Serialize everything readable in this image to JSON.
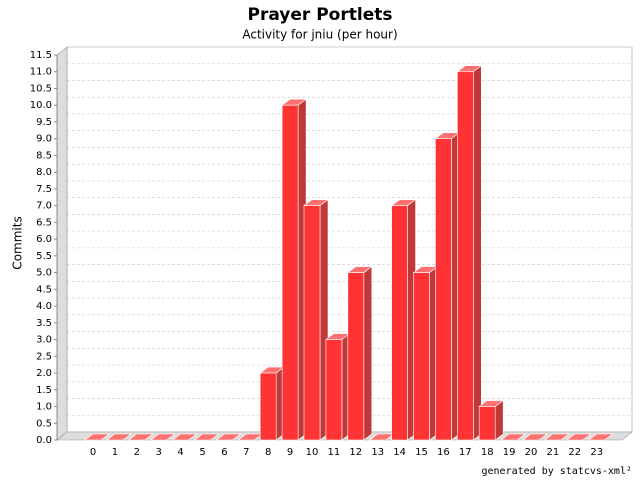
{
  "chart_data": {
    "type": "bar3d",
    "title": "Prayer Portlets",
    "subtitle": "Activity for jniu (per hour)",
    "y_label": "Commits",
    "footer": "generated by statcvs-xml²",
    "categories": [
      "0",
      "1",
      "2",
      "3",
      "4",
      "5",
      "6",
      "7",
      "8",
      "9",
      "10",
      "11",
      "12",
      "13",
      "14",
      "15",
      "16",
      "17",
      "18",
      "19",
      "20",
      "21",
      "22",
      "23"
    ],
    "values": [
      0,
      0,
      0,
      0,
      0,
      0,
      0,
      0,
      2,
      10,
      7,
      3,
      5,
      0,
      7,
      5,
      9,
      11,
      1,
      0,
      0,
      0,
      0,
      0
    ],
    "color": "#ff3333",
    "ylim": [
      0,
      11.5
    ],
    "yticks": [
      {
        "value": 0,
        "label": "0.0"
      },
      {
        "value": 0.5,
        "label": "0.5"
      },
      {
        "value": 1,
        "label": "1.0"
      },
      {
        "value": 1.5,
        "label": "1.5"
      },
      {
        "value": 2,
        "label": "2.0"
      },
      {
        "value": 2.5,
        "label": "2.5"
      },
      {
        "value": 3,
        "label": "3.0"
      },
      {
        "value": 3.5,
        "label": "3.5"
      },
      {
        "value": 4,
        "label": "4.0"
      },
      {
        "value": 4.5,
        "label": "4.5"
      },
      {
        "value": 5,
        "label": "5.0"
      },
      {
        "value": 5.5,
        "label": "5.5"
      },
      {
        "value": 6,
        "label": "6.0"
      },
      {
        "value": 6.5,
        "label": "6.5"
      },
      {
        "value": 7,
        "label": "7.0"
      },
      {
        "value": 7.5,
        "label": "7.5"
      },
      {
        "value": 8,
        "label": "8.0"
      },
      {
        "value": 8.5,
        "label": "8.5"
      },
      {
        "value": 9,
        "label": "9.0"
      },
      {
        "value": 9.5,
        "label": "9.5"
      },
      {
        "value": 10,
        "label": "10.0"
      },
      {
        "value": 10.5,
        "label": "10.5"
      },
      {
        "value": 11,
        "label": "11.0"
      },
      {
        "value": 11.5,
        "label": "11.5"
      }
    ],
    "grid": true
  }
}
